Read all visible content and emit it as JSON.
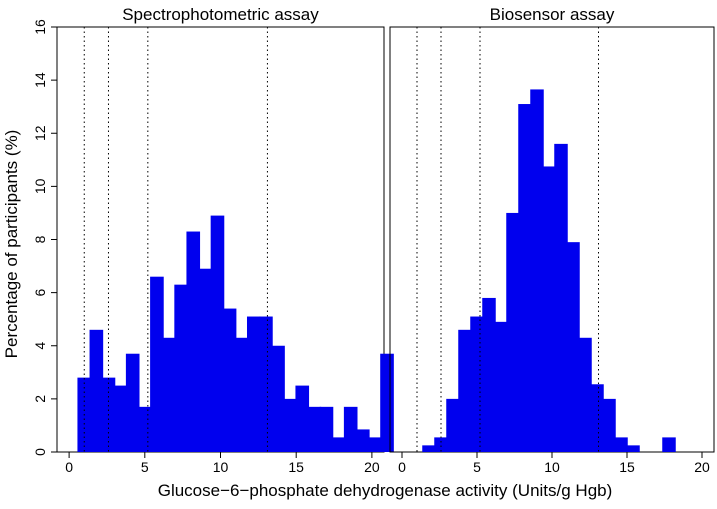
{
  "chart_data": {
    "type": "bar",
    "ylabel": "Percentage of participants (%)",
    "xlabel": "Glucose−6−phosphate dehydrogenase activity (Units/g Hgb)",
    "ylim": [
      0,
      16
    ],
    "yticks": [
      0,
      2,
      4,
      6,
      8,
      10,
      12,
      14,
      16
    ],
    "xlim": [
      -0.8,
      20.8
    ],
    "xticks": [
      0,
      5,
      10,
      15,
      20
    ],
    "bar_width": 0.9,
    "bar_color": "#0000ee",
    "grid": false,
    "reference_lines_x": [
      1.0,
      2.6,
      5.2,
      13.1
    ],
    "panels": [
      {
        "title": "Spectrophotometric assay",
        "bars": [
          {
            "x": 1.0,
            "y": 2.8
          },
          {
            "x": 1.8,
            "y": 4.6
          },
          {
            "x": 2.6,
            "y": 2.8
          },
          {
            "x": 3.4,
            "y": 2.5
          },
          {
            "x": 4.2,
            "y": 3.7
          },
          {
            "x": 5.0,
            "y": 1.7
          },
          {
            "x": 5.8,
            "y": 6.6
          },
          {
            "x": 6.6,
            "y": 4.3
          },
          {
            "x": 7.4,
            "y": 6.3
          },
          {
            "x": 8.2,
            "y": 8.3
          },
          {
            "x": 9.0,
            "y": 6.9
          },
          {
            "x": 9.8,
            "y": 8.9
          },
          {
            "x": 10.6,
            "y": 5.4
          },
          {
            "x": 11.4,
            "y": 4.3
          },
          {
            "x": 12.2,
            "y": 5.1
          },
          {
            "x": 13.0,
            "y": 5.1
          },
          {
            "x": 13.8,
            "y": 4.0
          },
          {
            "x": 14.6,
            "y": 2.0
          },
          {
            "x": 15.4,
            "y": 2.5
          },
          {
            "x": 16.2,
            "y": 1.7
          },
          {
            "x": 17.0,
            "y": 1.7
          },
          {
            "x": 17.8,
            "y": 0.55
          },
          {
            "x": 18.6,
            "y": 1.7
          },
          {
            "x": 19.4,
            "y": 0.85
          },
          {
            "x": 20.2,
            "y": 0.55
          },
          {
            "x": 21.0,
            "y": 3.7
          }
        ]
      },
      {
        "title": "Biosensor assay",
        "bars": [
          {
            "x": 1.8,
            "y": 0.25
          },
          {
            "x": 2.6,
            "y": 0.55
          },
          {
            "x": 3.4,
            "y": 2.0
          },
          {
            "x": 4.2,
            "y": 4.6
          },
          {
            "x": 5.0,
            "y": 5.1
          },
          {
            "x": 5.8,
            "y": 5.8
          },
          {
            "x": 6.6,
            "y": 4.9
          },
          {
            "x": 7.4,
            "y": 9.0
          },
          {
            "x": 8.2,
            "y": 13.1
          },
          {
            "x": 9.0,
            "y": 13.65
          },
          {
            "x": 9.8,
            "y": 10.75
          },
          {
            "x": 10.6,
            "y": 11.6
          },
          {
            "x": 11.4,
            "y": 7.9
          },
          {
            "x": 12.2,
            "y": 4.3
          },
          {
            "x": 13.0,
            "y": 2.55
          },
          {
            "x": 13.8,
            "y": 2.0
          },
          {
            "x": 14.6,
            "y": 0.55
          },
          {
            "x": 15.4,
            "y": 0.25
          },
          {
            "x": 17.8,
            "y": 0.55
          }
        ]
      }
    ]
  }
}
